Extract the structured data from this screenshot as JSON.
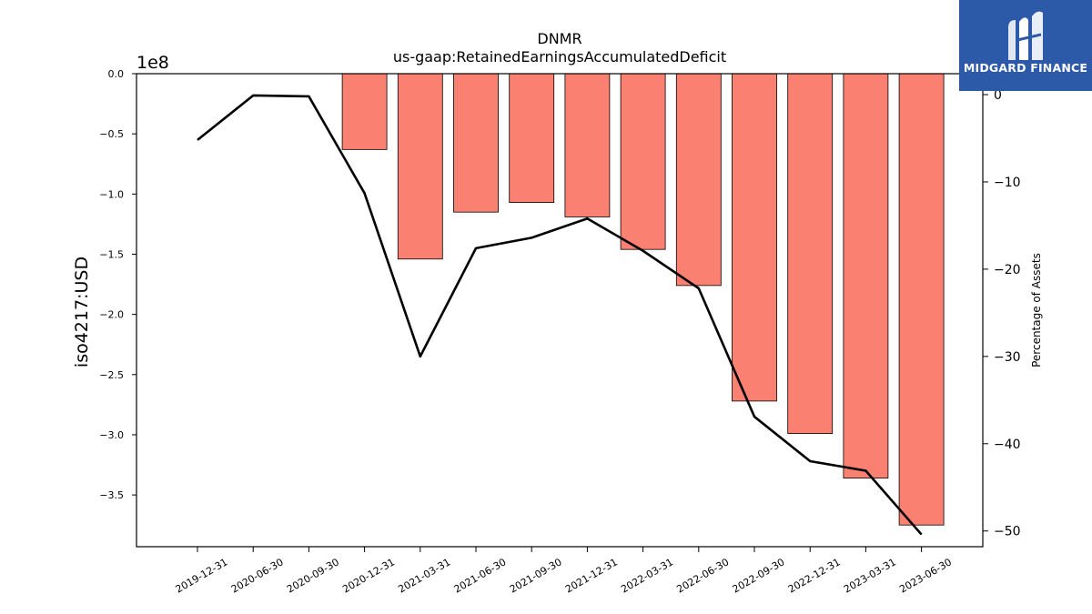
{
  "chart_data": {
    "type": "bar",
    "title": "DNMR",
    "subtitle": "us-gaap:RetainedEarningsAccumulatedDeficit",
    "ylabel": "iso4217:USD",
    "y_offset_label": "1e8",
    "y2label": "Percentage of Assets",
    "categories": [
      "2019-12-31",
      "2020-06-30",
      "2020-09-30",
      "2020-12-31",
      "2021-03-31",
      "2021-06-30",
      "2021-09-30",
      "2021-12-31",
      "2022-03-31",
      "2022-06-30",
      "2022-09-30",
      "2022-12-31",
      "2023-03-31",
      "2023-06-30"
    ],
    "series": [
      {
        "type": "bar",
        "axis": "left",
        "color": "#fa8072",
        "values": [
          null,
          null,
          null,
          -0.63,
          -1.54,
          -1.15,
          -1.07,
          -1.19,
          -1.46,
          -1.76,
          -2.72,
          -2.99,
          -3.36,
          -3.75
        ]
      },
      {
        "type": "line",
        "axis": "right",
        "color": "#000000",
        "values": [
          -5.2,
          -0.1,
          -0.2,
          -11.3,
          -30.0,
          -17.6,
          -16.4,
          -14.2,
          -17.9,
          -22.2,
          -36.9,
          -42.0,
          -43.1,
          -50.4
        ]
      }
    ],
    "ylim": [
      -3.93,
      0
    ],
    "y_ticks": [
      0.0,
      -0.5,
      -1.0,
      -1.5,
      -2.0,
      -2.5,
      -3.0,
      -3.5
    ],
    "y_tick_labels": [
      "0.0",
      "−0.5",
      "−1.0",
      "−1.5",
      "−2.0",
      "−2.5",
      "−3.0",
      "−3.5"
    ],
    "y2lim": [
      -51.8,
      2.4
    ],
    "y2_ticks": [
      0,
      -10,
      -20,
      -30,
      -40,
      -50
    ],
    "y2_tick_labels": [
      "0",
      "−10",
      "−20",
      "−30",
      "−40",
      "−50"
    ],
    "grid": false
  },
  "logo": {
    "text": "MIDGARD FINANCE",
    "background": "#2d5aa8"
  }
}
